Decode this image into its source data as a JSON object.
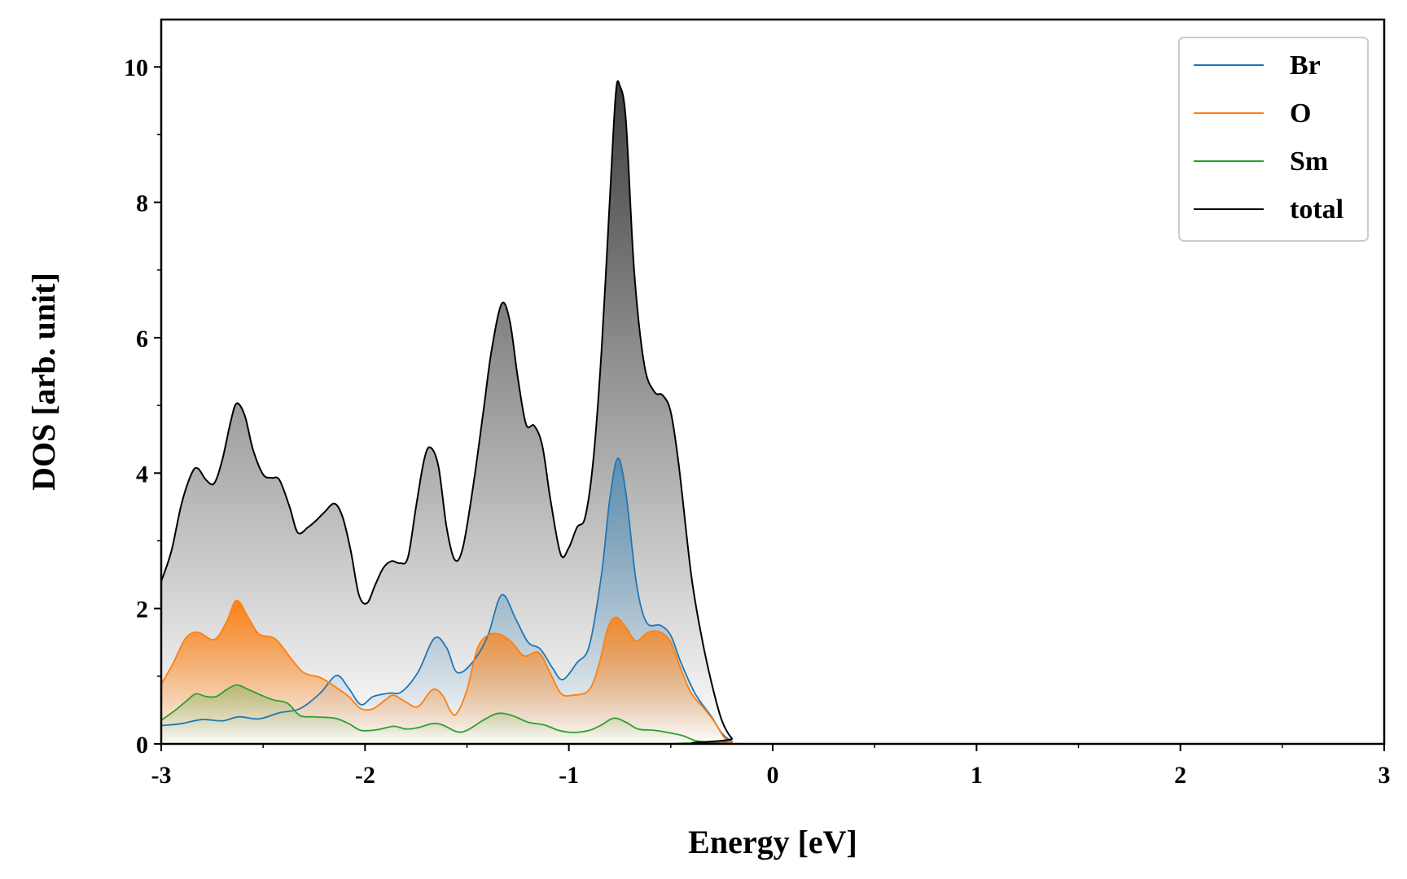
{
  "chart_data": {
    "type": "area",
    "title": "",
    "xlabel": "Energy [eV]",
    "ylabel": "DOS [arb. unit]",
    "xlim": [
      -3,
      3
    ],
    "ylim": [
      0,
      10.7
    ],
    "xticks": [
      -3,
      -2,
      -1,
      0,
      1,
      2,
      3
    ],
    "xtick_labels": [
      "-3",
      "-2",
      "-1",
      "0",
      "1",
      "2",
      "3"
    ],
    "yticks": [
      0,
      2,
      4,
      6,
      8,
      10
    ],
    "ytick_labels": [
      "0",
      "2",
      "4",
      "6",
      "8",
      "10"
    ],
    "grid": false,
    "legend_position": "top-right",
    "series": [
      {
        "name": "Br",
        "color": "#1f77b4",
        "points": [
          [
            -3.0,
            0.27
          ],
          [
            -2.9,
            0.3
          ],
          [
            -2.8,
            0.36
          ],
          [
            -2.7,
            0.34
          ],
          [
            -2.62,
            0.4
          ],
          [
            -2.52,
            0.37
          ],
          [
            -2.42,
            0.46
          ],
          [
            -2.32,
            0.52
          ],
          [
            -2.22,
            0.75
          ],
          [
            -2.14,
            1.01
          ],
          [
            -2.08,
            0.82
          ],
          [
            -2.02,
            0.58
          ],
          [
            -1.96,
            0.7
          ],
          [
            -1.88,
            0.75
          ],
          [
            -1.82,
            0.77
          ],
          [
            -1.74,
            1.06
          ],
          [
            -1.66,
            1.56
          ],
          [
            -1.6,
            1.42
          ],
          [
            -1.55,
            1.06
          ],
          [
            -1.48,
            1.18
          ],
          [
            -1.4,
            1.58
          ],
          [
            -1.33,
            2.2
          ],
          [
            -1.26,
            1.84
          ],
          [
            -1.2,
            1.5
          ],
          [
            -1.14,
            1.4
          ],
          [
            -1.08,
            1.12
          ],
          [
            -1.03,
            0.95
          ],
          [
            -0.96,
            1.2
          ],
          [
            -0.9,
            1.45
          ],
          [
            -0.84,
            2.5
          ],
          [
            -0.8,
            3.6
          ],
          [
            -0.76,
            4.22
          ],
          [
            -0.72,
            3.7
          ],
          [
            -0.67,
            2.4
          ],
          [
            -0.62,
            1.8
          ],
          [
            -0.55,
            1.75
          ],
          [
            -0.5,
            1.6
          ],
          [
            -0.45,
            1.2
          ],
          [
            -0.38,
            0.74
          ],
          [
            -0.3,
            0.4
          ],
          [
            -0.25,
            0.16
          ],
          [
            -0.2,
            0.04
          ],
          [
            -0.15,
            0.0
          ],
          [
            3.0,
            0.0
          ]
        ]
      },
      {
        "name": "O",
        "color": "#ff7f0e",
        "points": [
          [
            -3.0,
            0.88
          ],
          [
            -2.94,
            1.2
          ],
          [
            -2.88,
            1.56
          ],
          [
            -2.82,
            1.65
          ],
          [
            -2.74,
            1.54
          ],
          [
            -2.68,
            1.8
          ],
          [
            -2.63,
            2.12
          ],
          [
            -2.57,
            1.85
          ],
          [
            -2.52,
            1.62
          ],
          [
            -2.44,
            1.55
          ],
          [
            -2.36,
            1.25
          ],
          [
            -2.3,
            1.05
          ],
          [
            -2.22,
            0.98
          ],
          [
            -2.15,
            0.85
          ],
          [
            -2.08,
            0.7
          ],
          [
            -2.02,
            0.52
          ],
          [
            -1.96,
            0.52
          ],
          [
            -1.9,
            0.65
          ],
          [
            -1.86,
            0.72
          ],
          [
            -1.8,
            0.62
          ],
          [
            -1.74,
            0.55
          ],
          [
            -1.67,
            0.8
          ],
          [
            -1.62,
            0.72
          ],
          [
            -1.58,
            0.48
          ],
          [
            -1.55,
            0.45
          ],
          [
            -1.5,
            0.8
          ],
          [
            -1.45,
            1.4
          ],
          [
            -1.4,
            1.6
          ],
          [
            -1.34,
            1.62
          ],
          [
            -1.28,
            1.5
          ],
          [
            -1.22,
            1.3
          ],
          [
            -1.15,
            1.35
          ],
          [
            -1.1,
            1.1
          ],
          [
            -1.04,
            0.75
          ],
          [
            -0.98,
            0.72
          ],
          [
            -0.9,
            0.8
          ],
          [
            -0.85,
            1.2
          ],
          [
            -0.81,
            1.7
          ],
          [
            -0.77,
            1.87
          ],
          [
            -0.72,
            1.72
          ],
          [
            -0.67,
            1.52
          ],
          [
            -0.61,
            1.65
          ],
          [
            -0.55,
            1.65
          ],
          [
            -0.5,
            1.5
          ],
          [
            -0.45,
            1.1
          ],
          [
            -0.4,
            0.75
          ],
          [
            -0.33,
            0.5
          ],
          [
            -0.28,
            0.3
          ],
          [
            -0.24,
            0.1
          ],
          [
            -0.2,
            0.02
          ],
          [
            -0.15,
            0.0
          ],
          [
            3.0,
            0.0
          ]
        ]
      },
      {
        "name": "Sm",
        "color": "#2ca02c",
        "points": [
          [
            -3.0,
            0.35
          ],
          [
            -2.93,
            0.5
          ],
          [
            -2.87,
            0.65
          ],
          [
            -2.83,
            0.74
          ],
          [
            -2.78,
            0.7
          ],
          [
            -2.73,
            0.7
          ],
          [
            -2.68,
            0.8
          ],
          [
            -2.63,
            0.87
          ],
          [
            -2.57,
            0.8
          ],
          [
            -2.51,
            0.72
          ],
          [
            -2.45,
            0.65
          ],
          [
            -2.38,
            0.6
          ],
          [
            -2.32,
            0.42
          ],
          [
            -2.25,
            0.4
          ],
          [
            -2.15,
            0.38
          ],
          [
            -2.08,
            0.3
          ],
          [
            -2.02,
            0.2
          ],
          [
            -1.94,
            0.21
          ],
          [
            -1.86,
            0.26
          ],
          [
            -1.8,
            0.22
          ],
          [
            -1.74,
            0.24
          ],
          [
            -1.67,
            0.3
          ],
          [
            -1.62,
            0.28
          ],
          [
            -1.55,
            0.18
          ],
          [
            -1.5,
            0.2
          ],
          [
            -1.42,
            0.35
          ],
          [
            -1.35,
            0.45
          ],
          [
            -1.28,
            0.42
          ],
          [
            -1.2,
            0.32
          ],
          [
            -1.12,
            0.28
          ],
          [
            -1.05,
            0.2
          ],
          [
            -0.98,
            0.17
          ],
          [
            -0.9,
            0.2
          ],
          [
            -0.84,
            0.28
          ],
          [
            -0.78,
            0.38
          ],
          [
            -0.72,
            0.32
          ],
          [
            -0.66,
            0.22
          ],
          [
            -0.58,
            0.2
          ],
          [
            -0.5,
            0.16
          ],
          [
            -0.44,
            0.12
          ],
          [
            -0.38,
            0.05
          ],
          [
            -0.3,
            0.02
          ],
          [
            -0.22,
            0.0
          ],
          [
            3.0,
            0.0
          ]
        ]
      },
      {
        "name": "total",
        "color": "#000000",
        "points": [
          [
            -3.0,
            2.4
          ],
          [
            -2.95,
            2.85
          ],
          [
            -2.9,
            3.55
          ],
          [
            -2.85,
            4.0
          ],
          [
            -2.82,
            4.07
          ],
          [
            -2.78,
            3.9
          ],
          [
            -2.74,
            3.85
          ],
          [
            -2.7,
            4.2
          ],
          [
            -2.66,
            4.75
          ],
          [
            -2.63,
            5.03
          ],
          [
            -2.59,
            4.85
          ],
          [
            -2.55,
            4.35
          ],
          [
            -2.5,
            3.98
          ],
          [
            -2.46,
            3.93
          ],
          [
            -2.42,
            3.9
          ],
          [
            -2.37,
            3.5
          ],
          [
            -2.33,
            3.12
          ],
          [
            -2.28,
            3.2
          ],
          [
            -2.24,
            3.3
          ],
          [
            -2.2,
            3.42
          ],
          [
            -2.15,
            3.55
          ],
          [
            -2.11,
            3.35
          ],
          [
            -2.07,
            2.85
          ],
          [
            -2.03,
            2.2
          ],
          [
            -1.99,
            2.08
          ],
          [
            -1.95,
            2.35
          ],
          [
            -1.91,
            2.6
          ],
          [
            -1.87,
            2.7
          ],
          [
            -1.83,
            2.67
          ],
          [
            -1.79,
            2.75
          ],
          [
            -1.75,
            3.5
          ],
          [
            -1.71,
            4.2
          ],
          [
            -1.68,
            4.38
          ],
          [
            -1.64,
            4.1
          ],
          [
            -1.6,
            3.2
          ],
          [
            -1.56,
            2.72
          ],
          [
            -1.52,
            2.9
          ],
          [
            -1.47,
            3.8
          ],
          [
            -1.42,
            4.9
          ],
          [
            -1.38,
            5.8
          ],
          [
            -1.33,
            6.5
          ],
          [
            -1.29,
            6.25
          ],
          [
            -1.25,
            5.4
          ],
          [
            -1.21,
            4.72
          ],
          [
            -1.17,
            4.7
          ],
          [
            -1.13,
            4.4
          ],
          [
            -1.09,
            3.6
          ],
          [
            -1.04,
            2.8
          ],
          [
            -1.0,
            2.9
          ],
          [
            -0.96,
            3.2
          ],
          [
            -0.92,
            3.35
          ],
          [
            -0.88,
            4.2
          ],
          [
            -0.84,
            5.8
          ],
          [
            -0.8,
            8.0
          ],
          [
            -0.77,
            9.6
          ],
          [
            -0.75,
            9.72
          ],
          [
            -0.72,
            9.2
          ],
          [
            -0.68,
            7.0
          ],
          [
            -0.63,
            5.6
          ],
          [
            -0.58,
            5.2
          ],
          [
            -0.54,
            5.15
          ],
          [
            -0.5,
            4.9
          ],
          [
            -0.46,
            4.1
          ],
          [
            -0.4,
            2.5
          ],
          [
            -0.35,
            1.6
          ],
          [
            -0.3,
            0.9
          ],
          [
            -0.25,
            0.35
          ],
          [
            -0.2,
            0.08
          ],
          [
            -0.15,
            0.0
          ],
          [
            3.0,
            0.0
          ]
        ]
      }
    ]
  }
}
